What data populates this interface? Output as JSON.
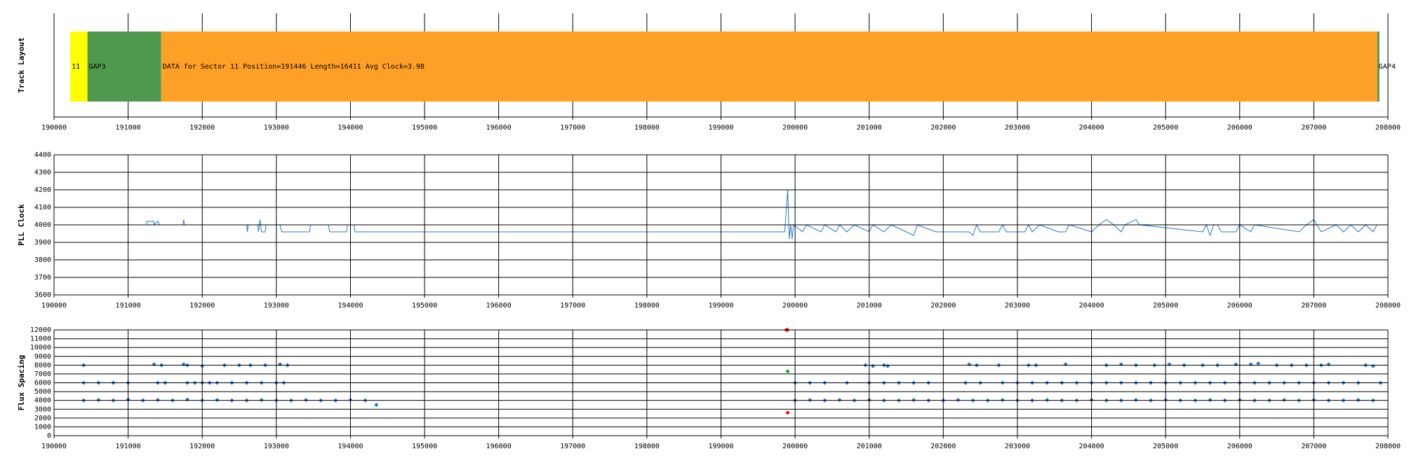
{
  "chart_data": [
    {
      "type": "track",
      "ylabel": "Track Layout",
      "segments": [
        {
          "label": "11",
          "color": "#ffff00",
          "start": 190219,
          "end": 190451
        },
        {
          "label": "GAP3",
          "color": "#4f994f",
          "start": 190451,
          "end": 191446
        },
        {
          "label": "DATA for Sector 11 Position=191446 Length=16411 Avg Clock=3.98",
          "color": "#ffa026",
          "start": 191446,
          "end": 207857
        },
        {
          "label": "GAP4",
          "color": "#4f994f",
          "start": 207857,
          "end": 207885
        }
      ],
      "xlim": [
        190000,
        208000
      ],
      "xticks": [
        190000,
        191000,
        192000,
        193000,
        194000,
        195000,
        196000,
        197000,
        198000,
        199000,
        200000,
        201000,
        202000,
        203000,
        204000,
        205000,
        206000,
        207000,
        208000
      ],
      "grid": true
    },
    {
      "type": "line",
      "ylabel": "PLL Clock",
      "color": "#1f77d4",
      "x": [
        190350,
        191250,
        191250,
        191350,
        191350,
        191400,
        191420,
        191740,
        191750,
        191760,
        192600,
        192610,
        192620,
        192750,
        192760,
        192780,
        192800,
        192850,
        192860,
        193050,
        193070,
        193450,
        193460,
        193700,
        193720,
        193950,
        193960,
        194050,
        194060,
        199860,
        199900,
        199920,
        199940,
        199960,
        199980,
        200100,
        200150,
        200350,
        200400,
        200550,
        200600,
        200700,
        200800,
        201000,
        201050,
        201200,
        201300,
        201600,
        201650,
        201900,
        202350,
        202400,
        202450,
        202500,
        202750,
        202800,
        202850,
        203100,
        203150,
        203200,
        203300,
        203550,
        203650,
        203700,
        204000,
        204100,
        204200,
        204300,
        204400,
        204450,
        204600,
        204650,
        205500,
        205550,
        205600,
        205650,
        205700,
        205750,
        205950,
        206000,
        206150,
        206200,
        206800,
        206900,
        207000,
        207100,
        207300,
        207400,
        207500,
        207600,
        207700,
        207800,
        207850
      ],
      "values": [
        4000,
        4000,
        4020,
        4020,
        4000,
        4020,
        4000,
        4000,
        4030,
        4000,
        4000,
        3960,
        4000,
        4000,
        3960,
        4030,
        3960,
        3960,
        4000,
        4000,
        3960,
        3960,
        4000,
        4000,
        3960,
        3960,
        4000,
        4000,
        3960,
        3960,
        4200,
        3920,
        4000,
        3920,
        4000,
        3960,
        4000,
        3960,
        4000,
        3960,
        4000,
        3960,
        4000,
        3960,
        4000,
        3960,
        4000,
        3940,
        4000,
        3960,
        3960,
        3940,
        4000,
        3960,
        3960,
        4000,
        3960,
        3960,
        4000,
        3960,
        4000,
        3960,
        3960,
        4000,
        3960,
        4000,
        4030,
        4000,
        3960,
        4000,
        4030,
        4000,
        3960,
        4000,
        3940,
        4000,
        4000,
        3960,
        3960,
        4000,
        3960,
        4000,
        3960,
        4000,
        4030,
        3960,
        4000,
        3960,
        4000,
        3960,
        4000,
        3960,
        4000
      ],
      "xlim": [
        190000,
        208000
      ],
      "xticks": [
        190000,
        191000,
        192000,
        193000,
        194000,
        195000,
        196000,
        197000,
        198000,
        199000,
        200000,
        201000,
        202000,
        203000,
        204000,
        205000,
        206000,
        207000,
        208000
      ],
      "ylim": [
        3600,
        4400
      ],
      "yticks": [
        3600,
        3700,
        3800,
        3900,
        4000,
        4100,
        4200,
        4300,
        4400
      ],
      "grid": true
    },
    {
      "type": "scatter",
      "ylabel": "Flux Spacing",
      "series": [
        {
          "color": "#1f77d4",
          "x": [
            190400,
            190600,
            190800,
            191000,
            191200,
            191400,
            191600,
            191800,
            192000,
            192200,
            192400,
            192600,
            192800,
            193000,
            193200,
            193400,
            193600,
            193800,
            194000,
            194200,
            194350,
            200000,
            200200,
            200400,
            200600,
            200800,
            201000,
            201200,
            201400,
            201600,
            201800,
            202000,
            202200,
            202400,
            202600,
            202800,
            203000,
            203200,
            203400,
            203600,
            203800,
            204000,
            204200,
            204400,
            204600,
            204800,
            205000,
            205200,
            205400,
            205600,
            205800,
            206000,
            206200,
            206400,
            206600,
            206800,
            207000,
            207200,
            207400,
            207600,
            207800,
            190400,
            190600,
            190800,
            191000,
            191400,
            191500,
            191800,
            191900,
            192000,
            192100,
            192200,
            192400,
            192600,
            192800,
            193000,
            193100,
            200000,
            200200,
            200400,
            200700,
            201000,
            201200,
            201400,
            201600,
            201800,
            202300,
            202500,
            202800,
            203000,
            203200,
            203400,
            203600,
            203800,
            204000,
            204200,
            204400,
            204600,
            204800,
            205000,
            205200,
            205400,
            205600,
            205800,
            206000,
            206200,
            206400,
            206600,
            206800,
            207000,
            207200,
            207400,
            207600,
            207900,
            190400,
            191350,
            191450,
            191750,
            191800,
            192000,
            192300,
            192500,
            192650,
            192850,
            193050,
            193150,
            200950,
            201050,
            201200,
            201250,
            202350,
            202450,
            202750,
            203150,
            203250,
            203650,
            204200,
            204400,
            204600,
            204850,
            205050,
            205250,
            205500,
            205700,
            205950,
            206150,
            206250,
            206500,
            206700,
            206900,
            207100,
            207200,
            207700,
            207800
          ],
          "values": [
            4000,
            4050,
            4000,
            4100,
            4000,
            4050,
            4000,
            4100,
            4000,
            4050,
            4000,
            4000,
            4050,
            4000,
            4000,
            4050,
            4000,
            4000,
            4050,
            4000,
            3500,
            4000,
            4050,
            4000,
            4050,
            4000,
            4050,
            4000,
            4000,
            4050,
            4000,
            4000,
            4050,
            4000,
            4000,
            4050,
            4000,
            4000,
            4050,
            4000,
            4000,
            4050,
            4000,
            4000,
            4050,
            4000,
            4050,
            4000,
            4000,
            4050,
            4000,
            4050,
            4000,
            4000,
            4050,
            4000,
            4050,
            4000,
            4000,
            4050,
            4000,
            6000,
            6000,
            6000,
            6000,
            6000,
            6000,
            6000,
            6000,
            6000,
            6000,
            6000,
            6000,
            6000,
            6000,
            6000,
            6000,
            6000,
            6000,
            6000,
            6000,
            6000,
            6000,
            6000,
            6000,
            6000,
            6000,
            6000,
            6000,
            6000,
            6000,
            6000,
            6000,
            6000,
            6000,
            6000,
            6000,
            6000,
            6000,
            6000,
            6000,
            6000,
            6000,
            6000,
            6000,
            6000,
            6000,
            6000,
            6000,
            6000,
            6000,
            6000,
            6000,
            6000,
            8000,
            8100,
            8000,
            8100,
            8000,
            7900,
            8000,
            8000,
            8000,
            8000,
            8100,
            8000,
            8000,
            7900,
            8000,
            7900,
            8100,
            8000,
            8000,
            8000,
            8000,
            8100,
            8000,
            8100,
            8000,
            8000,
            8100,
            8000,
            8000,
            8000,
            8100,
            8100,
            8200,
            8000,
            8000,
            8000,
            8000,
            8100,
            8000,
            7900
          ]
        },
        {
          "color": "#ff0000",
          "x": [
            199880,
            199900,
            199900
          ],
          "values": [
            12000,
            12000,
            2600
          ]
        },
        {
          "color": "#00aa00",
          "x": [
            199900
          ],
          "values": [
            7300
          ]
        }
      ],
      "xlim": [
        190000,
        208000
      ],
      "xticks": [
        190000,
        191000,
        192000,
        193000,
        194000,
        195000,
        196000,
        197000,
        198000,
        199000,
        200000,
        201000,
        202000,
        203000,
        204000,
        205000,
        206000,
        207000,
        208000
      ],
      "ylim": [
        0,
        12000
      ],
      "yticks": [
        0,
        1000,
        2000,
        3000,
        4000,
        5000,
        6000,
        7000,
        8000,
        9000,
        10000,
        11000,
        12000
      ],
      "grid": true
    }
  ]
}
